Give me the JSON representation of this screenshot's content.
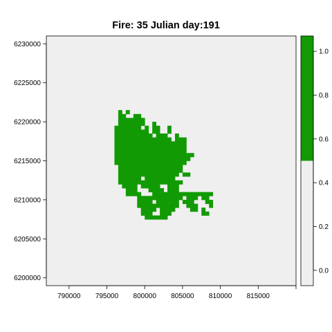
{
  "chart_data": {
    "type": "heatmap",
    "title": "Fire: 35   Julian day:191",
    "xlabel": "",
    "ylabel": "",
    "xlim": [
      787000,
      820000
    ],
    "ylim": [
      6199000,
      6231000
    ],
    "x_ticks": [
      790000,
      795000,
      800000,
      805000,
      810000,
      815000
    ],
    "y_ticks": [
      6200000,
      6205000,
      6210000,
      6215000,
      6220000,
      6225000,
      6230000
    ],
    "cell_size": 500,
    "grid_origin": {
      "x": 795000,
      "y": 6207000
    },
    "burned_value": 1,
    "unburned_value": 0,
    "burned_rows": [
      [],
      [
        [
          3,
          3
        ],
        [
          5,
          5
        ]
      ],
      [
        [
          3,
          4
        ],
        [
          7,
          8
        ]
      ],
      [
        [
          3,
          9
        ]
      ],
      [
        [
          3,
          9
        ],
        [
          12,
          12
        ]
      ],
      [
        [
          2,
          8
        ],
        [
          10,
          10
        ],
        [
          12,
          13
        ],
        [
          16,
          16
        ]
      ],
      [
        [
          2,
          10
        ],
        [
          12,
          13
        ],
        [
          16,
          16
        ]
      ],
      [
        [
          2,
          11
        ],
        [
          13,
          15
        ],
        [
          18,
          18
        ]
      ],
      [
        [
          2,
          14
        ],
        [
          15,
          16
        ],
        [
          18,
          20
        ]
      ],
      [
        [
          2,
          10
        ],
        [
          11,
          20
        ]
      ],
      [
        [
          2,
          9
        ],
        [
          10,
          20
        ]
      ],
      [
        [
          2,
          20
        ]
      ],
      [
        [
          2,
          19
        ],
        [
          20,
          22
        ]
      ],
      [
        [
          2,
          21
        ]
      ],
      [
        [
          2,
          20
        ]
      ],
      [
        [
          3,
          19
        ]
      ],
      [
        [
          3,
          19
        ]
      ],
      [
        [
          3,
          9
        ],
        [
          10,
          18
        ],
        [
          20,
          21
        ]
      ],
      [
        [
          3,
          8
        ],
        [
          10,
          13
        ],
        [
          14,
          17
        ]
      ],
      [
        [
          3,
          15
        ],
        [
          16,
          19
        ]
      ],
      [
        [
          4,
          7
        ],
        [
          9,
          13
        ],
        [
          16,
          18
        ]
      ],
      [
        [
          5,
          7
        ],
        [
          11,
          14
        ],
        [
          16,
          18
        ]
      ],
      [
        [
          5,
          8
        ],
        [
          12,
          16
        ],
        [
          17,
          18
        ],
        [
          19,
          20
        ],
        [
          21,
          22
        ],
        [
          23,
          24
        ],
        [
          25,
          27
        ]
      ],
      [
        [
          8,
          11
        ],
        [
          12,
          17
        ],
        [
          18,
          19
        ],
        [
          21,
          23
        ],
        [
          25,
          26
        ]
      ],
      [
        [
          8,
          11
        ],
        [
          13,
          15
        ],
        [
          16,
          18
        ],
        [
          20,
          22
        ],
        [
          26,
          27
        ]
      ],
      [
        [
          8,
          12
        ],
        [
          13,
          15
        ],
        [
          16,
          18
        ],
        [
          21,
          23
        ],
        [
          27,
          27
        ]
      ],
      [
        [
          9,
          12
        ],
        [
          14,
          17
        ],
        [
          22,
          23
        ],
        [
          25,
          25
        ]
      ],
      [
        [
          9,
          11
        ],
        [
          14,
          16
        ],
        [
          25,
          26
        ]
      ],
      [
        [
          10,
          12
        ],
        [
          13,
          15
        ]
      ],
      []
    ],
    "legend": {
      "type": "colorbar",
      "placement": "right",
      "range": [
        -0.07,
        1.07
      ],
      "ticks": [
        0.0,
        0.2,
        0.4,
        0.6,
        0.8,
        1.0
      ],
      "tick_labels": [
        "0.0",
        "0.2",
        "0.4",
        "0.6",
        "0.8",
        "1.0"
      ],
      "break": 0.5
    },
    "colors": {
      "burned": "#129a04",
      "background": "#efefef",
      "frame": "#000000"
    }
  }
}
